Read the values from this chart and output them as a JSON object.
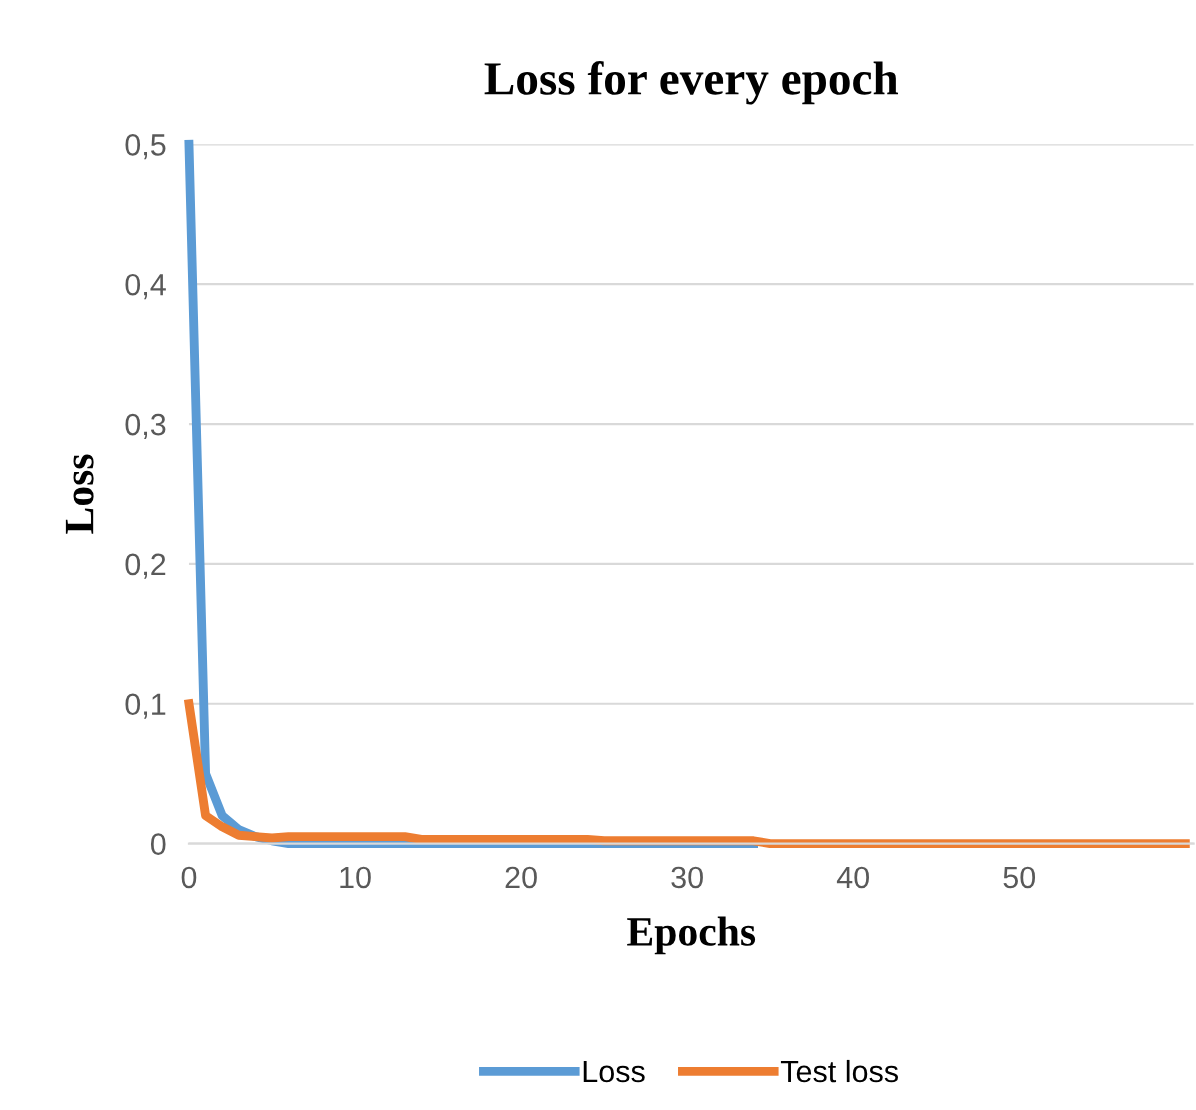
{
  "chart_data": {
    "type": "line",
    "title": "Loss for every epoch",
    "xlabel": "Epochs",
    "ylabel": "Loss",
    "x": [
      0,
      1,
      2,
      3,
      4,
      5,
      6,
      7,
      8,
      9,
      10,
      11,
      12,
      13,
      14,
      15,
      16,
      17,
      18,
      19,
      20,
      21,
      22,
      23,
      24,
      25,
      26,
      27,
      28,
      29,
      30,
      31,
      32,
      33,
      34,
      35,
      36,
      37,
      38,
      39,
      40,
      41,
      42,
      43,
      44,
      45,
      46,
      47,
      48,
      49,
      50,
      51,
      52,
      53,
      54,
      55,
      56,
      57,
      58,
      59,
      60
    ],
    "series": [
      {
        "name": "Loss",
        "color": "#5b9bd5",
        "values": [
          0.5,
          0.05,
          0.02,
          0.01,
          0.005,
          0.002,
          0,
          0,
          0,
          0,
          0,
          0,
          0,
          0,
          0,
          0,
          0,
          0,
          0,
          0,
          0,
          0,
          0,
          0,
          0,
          0,
          0,
          0,
          0,
          0,
          0,
          0,
          0,
          0,
          0,
          null,
          null,
          null,
          null,
          null,
          null,
          null,
          null,
          null,
          null,
          null,
          null,
          null,
          null,
          null,
          null,
          null,
          null,
          null,
          null,
          null,
          null,
          null,
          null,
          null,
          null
        ]
      },
      {
        "name": "Test loss",
        "color": "#ed7d31",
        "values": [
          0.1,
          0.02,
          0.012,
          0.006,
          0.005,
          0.004,
          0.005,
          0.005,
          0.005,
          0.005,
          0.005,
          0.005,
          0.005,
          0.005,
          0.003,
          0.003,
          0.003,
          0.003,
          0.003,
          0.003,
          0.003,
          0.003,
          0.003,
          0.003,
          0.003,
          0.002,
          0.002,
          0.002,
          0.002,
          0.002,
          0.002,
          0.002,
          0.002,
          0.002,
          0.002,
          0,
          0,
          0,
          0,
          0,
          0,
          0,
          0,
          0,
          0,
          0,
          0,
          0,
          0,
          0,
          0,
          0,
          0,
          0,
          0,
          0,
          0,
          0,
          0,
          0,
          0
        ]
      }
    ],
    "xlim": [
      0,
      60.5
    ],
    "xticks": [
      0,
      10,
      20,
      30,
      40,
      50
    ],
    "ylim": [
      0,
      0.5
    ],
    "yticks": [
      0,
      {
        "value": 0.1,
        "label": "0,1"
      },
      {
        "value": 0.2,
        "label": "0,2"
      },
      {
        "value": 0.3,
        "label": "0,3"
      },
      {
        "value": 0.4,
        "label": "0,4"
      },
      {
        "value": 0.5,
        "label": "0,5"
      }
    ],
    "grid": "y",
    "legend": "bottom",
    "marker": "none",
    "line_style": "solid"
  }
}
